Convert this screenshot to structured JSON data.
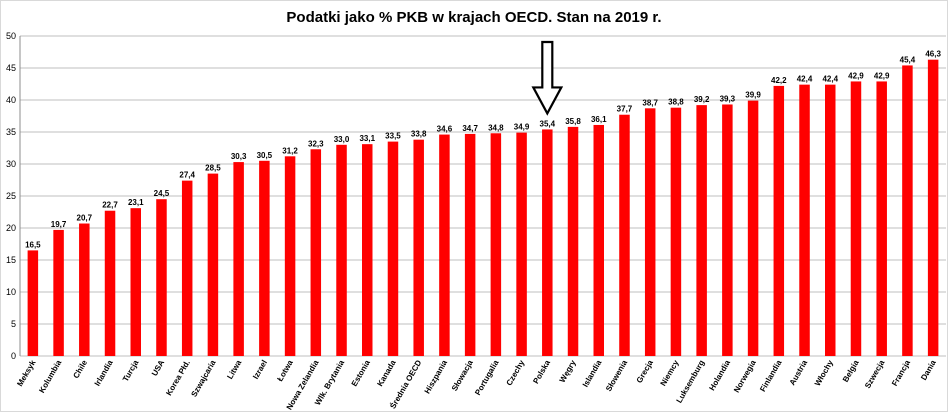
{
  "chart_data": {
    "type": "bar",
    "title": "Podatki jako % PKB w krajach OECD. Stan na 2019 r.",
    "xlabel": "",
    "ylabel": "",
    "ylim": [
      0,
      50
    ],
    "yticks": [
      0,
      5,
      10,
      15,
      20,
      25,
      30,
      35,
      40,
      45,
      50
    ],
    "grid": true,
    "bar_color": "#ff0000",
    "categories": [
      "Meksyk",
      "Kolumbia",
      "Chile",
      "Irlandia",
      "Turcja",
      "USA",
      "Korea Płd.",
      "Szwajcaria",
      "Litwa",
      "Izrael",
      "Łotwa",
      "Nowa Zelandia",
      "Wlk. Brytania",
      "Estonia",
      "Kanada",
      "Średnia OECD",
      "Hiszpania",
      "Słowacja",
      "Portugalia",
      "Czechy",
      "Polska",
      "Węgry",
      "Islandia",
      "Słowenia",
      "Grecja",
      "Niemcy",
      "Luksemburg",
      "Holandia",
      "Norwegia",
      "Finlandia",
      "Austria",
      "Włochy",
      "Belgia",
      "Szwecja",
      "Francja",
      "Dania"
    ],
    "values": [
      16.5,
      19.7,
      20.7,
      22.7,
      23.1,
      24.5,
      27.4,
      28.5,
      30.3,
      30.5,
      31.2,
      32.3,
      33.0,
      33.1,
      33.5,
      33.8,
      34.6,
      34.7,
      34.8,
      34.9,
      35.4,
      35.8,
      36.1,
      37.7,
      38.7,
      38.8,
      39.2,
      39.3,
      39.9,
      42.2,
      42.4,
      42.4,
      42.9,
      42.9,
      45.4,
      46.3
    ],
    "data_labels": [
      "16,5",
      "19,7",
      "20,7",
      "22,7",
      "23,1",
      "24,5",
      "27,4",
      "28,5",
      "30,3",
      "30,5",
      "31,2",
      "32,3",
      "33,0",
      "33,1",
      "33,5",
      "33,8",
      "34,6",
      "34,7",
      "34,8",
      "34,9",
      "35,4",
      "35,8",
      "36,1",
      "37,7",
      "38,7",
      "38,8",
      "39,2",
      "39,3",
      "39,9",
      "42,2",
      "42,4",
      "42,4",
      "42,9",
      "42,9",
      "45,4",
      "46,3"
    ],
    "annotations": [
      {
        "type": "arrow",
        "points_to": "Polska"
      }
    ]
  }
}
